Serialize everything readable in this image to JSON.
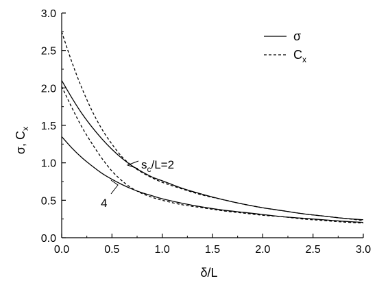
{
  "chart_data": {
    "type": "line",
    "xlabel": "δ/L",
    "ylabel_main": "σ, C",
    "ylabel_sub": "x",
    "xlim": [
      0,
      3.0
    ],
    "ylim": [
      0,
      3.0
    ],
    "x_ticks": [
      "0.0",
      "0.5",
      "1.0",
      "1.5",
      "2.0",
      "2.5",
      "3.0"
    ],
    "y_ticks": [
      "0.0",
      "0.5",
      "1.0",
      "1.5",
      "2.0",
      "2.5",
      "3.0"
    ],
    "legend": {
      "placement": "top-right",
      "entries": [
        {
          "label_main": "σ",
          "label_sub": "",
          "style": "solid"
        },
        {
          "label_main": "C",
          "label_sub": "x",
          "style": "dashed"
        }
      ]
    },
    "annotations": [
      {
        "text_parts": [
          "s",
          "c",
          "/L=2"
        ],
        "target": "sc/L=2 curves"
      },
      {
        "text_parts": [
          "4"
        ],
        "target": "sc/L=4 curves"
      }
    ],
    "series": [
      {
        "group": "s_c/L=2",
        "kind": "σ",
        "style": "solid",
        "points": [
          [
            0,
            2.1
          ],
          [
            0.1,
            1.87
          ],
          [
            0.2,
            1.66
          ],
          [
            0.3,
            1.48
          ],
          [
            0.4,
            1.32
          ],
          [
            0.5,
            1.18
          ],
          [
            0.6,
            1.06
          ],
          [
            0.7,
            0.96
          ],
          [
            0.8,
            0.88
          ],
          [
            0.9,
            0.81
          ],
          [
            1.0,
            0.76
          ],
          [
            1.2,
            0.66
          ],
          [
            1.4,
            0.58
          ],
          [
            1.6,
            0.51
          ],
          [
            1.8,
            0.45
          ],
          [
            2.0,
            0.4
          ],
          [
            2.2,
            0.36
          ],
          [
            2.4,
            0.32
          ],
          [
            2.6,
            0.29
          ],
          [
            2.8,
            0.26
          ],
          [
            3.0,
            0.24
          ]
        ]
      },
      {
        "group": "s_c/L=2",
        "kind": "Cx",
        "style": "dashed",
        "points": [
          [
            0,
            2.75
          ],
          [
            0.1,
            2.35
          ],
          [
            0.2,
            2.0
          ],
          [
            0.3,
            1.7
          ],
          [
            0.4,
            1.45
          ],
          [
            0.5,
            1.25
          ],
          [
            0.6,
            1.08
          ],
          [
            0.7,
            0.96
          ],
          [
            0.8,
            0.87
          ],
          [
            0.9,
            0.8
          ],
          [
            1.0,
            0.74
          ],
          [
            1.2,
            0.65
          ],
          [
            1.4,
            0.57
          ],
          [
            1.6,
            0.51
          ],
          [
            1.8,
            0.45
          ],
          [
            2.0,
            0.4
          ],
          [
            2.2,
            0.36
          ],
          [
            2.4,
            0.32
          ],
          [
            2.6,
            0.29
          ],
          [
            2.8,
            0.26
          ],
          [
            3.0,
            0.23
          ]
        ]
      },
      {
        "group": "s_c/L=4",
        "kind": "σ",
        "style": "solid",
        "points": [
          [
            0,
            1.35
          ],
          [
            0.1,
            1.2
          ],
          [
            0.2,
            1.07
          ],
          [
            0.3,
            0.96
          ],
          [
            0.4,
            0.86
          ],
          [
            0.5,
            0.78
          ],
          [
            0.6,
            0.71
          ],
          [
            0.7,
            0.65
          ],
          [
            0.8,
            0.6
          ],
          [
            0.9,
            0.56
          ],
          [
            1.0,
            0.52
          ],
          [
            1.2,
            0.46
          ],
          [
            1.4,
            0.41
          ],
          [
            1.6,
            0.37
          ],
          [
            1.8,
            0.34
          ],
          [
            2.0,
            0.31
          ],
          [
            2.2,
            0.28
          ],
          [
            2.4,
            0.26
          ],
          [
            2.6,
            0.24
          ],
          [
            2.8,
            0.22
          ],
          [
            3.0,
            0.205
          ]
        ]
      },
      {
        "group": "s_c/L=4",
        "kind": "Cx",
        "style": "dashed",
        "points": [
          [
            0,
            2.02
          ],
          [
            0.1,
            1.74
          ],
          [
            0.2,
            1.48
          ],
          [
            0.3,
            1.26
          ],
          [
            0.4,
            1.06
          ],
          [
            0.5,
            0.89
          ],
          [
            0.6,
            0.76
          ],
          [
            0.7,
            0.66
          ],
          [
            0.8,
            0.59
          ],
          [
            0.9,
            0.54
          ],
          [
            1.0,
            0.5
          ],
          [
            1.2,
            0.44
          ],
          [
            1.4,
            0.4
          ],
          [
            1.6,
            0.36
          ],
          [
            1.8,
            0.33
          ],
          [
            2.0,
            0.3
          ],
          [
            2.2,
            0.28
          ],
          [
            2.4,
            0.25
          ],
          [
            2.6,
            0.23
          ],
          [
            2.8,
            0.21
          ],
          [
            3.0,
            0.195
          ]
        ]
      }
    ]
  }
}
